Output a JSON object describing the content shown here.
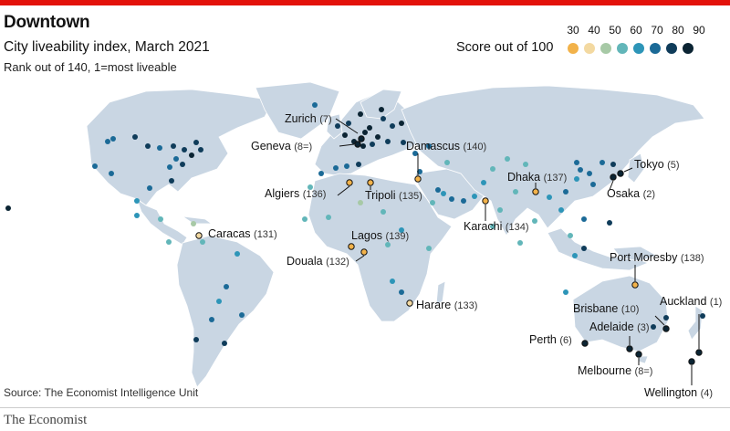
{
  "header": {
    "title": "Downtown",
    "subtitle": "City liveability index, March 2021",
    "note": "Rank out of 140, 1=most liveable",
    "accent_color": "#e3120b"
  },
  "legend": {
    "title": "Score out of 100",
    "ticks": [
      "30",
      "40",
      "50",
      "60",
      "70",
      "80",
      "90"
    ],
    "colors": [
      "#f2b24a",
      "#f3d9a1",
      "#a7c9a6",
      "#62b6b9",
      "#2d95b8",
      "#1b6a97",
      "#0f3c5a",
      "#0b2433"
    ]
  },
  "map": {
    "land_color": "#c9d6e3",
    "border_color": "#ffffff",
    "labelled_cities": [
      {
        "name": "Zurich",
        "rank": "(7)",
        "score_band": 7
      },
      {
        "name": "Geneva",
        "rank": "(8=)",
        "score_band": 7
      },
      {
        "name": "Damascus",
        "rank": "(140)",
        "score_band": 0
      },
      {
        "name": "Algiers",
        "rank": "(136)",
        "score_band": 0
      },
      {
        "name": "Tripoli",
        "rank": "(135)",
        "score_band": 0
      },
      {
        "name": "Dhaka",
        "rank": "(137)",
        "score_band": 0
      },
      {
        "name": "Tokyo",
        "rank": "(5)",
        "score_band": 7
      },
      {
        "name": "Osaka",
        "rank": "(2)",
        "score_band": 7
      },
      {
        "name": "Karachi",
        "rank": "(134)",
        "score_band": 0
      },
      {
        "name": "Caracas",
        "rank": "(131)",
        "score_band": 1
      },
      {
        "name": "Lagos",
        "rank": "(139)",
        "score_band": 0
      },
      {
        "name": "Douala",
        "rank": "(132)",
        "score_band": 0
      },
      {
        "name": "Port Moresby",
        "rank": "(138)",
        "score_band": 0
      },
      {
        "name": "Harare",
        "rank": "(133)",
        "score_band": 1
      },
      {
        "name": "Brisbane",
        "rank": "(10)",
        "score_band": 7
      },
      {
        "name": "Auckland",
        "rank": "(1)",
        "score_band": 7
      },
      {
        "name": "Adelaide",
        "rank": "(3)",
        "score_band": 7
      },
      {
        "name": "Perth",
        "rank": "(6)",
        "score_band": 7
      },
      {
        "name": "Melbourne",
        "rank": "(8=)",
        "score_band": 7
      },
      {
        "name": "Wellington",
        "rank": "(4)",
        "score_band": 7
      }
    ]
  },
  "footer": {
    "source": "Source: The Economist Intelligence Unit",
    "brand": "The Economist"
  }
}
